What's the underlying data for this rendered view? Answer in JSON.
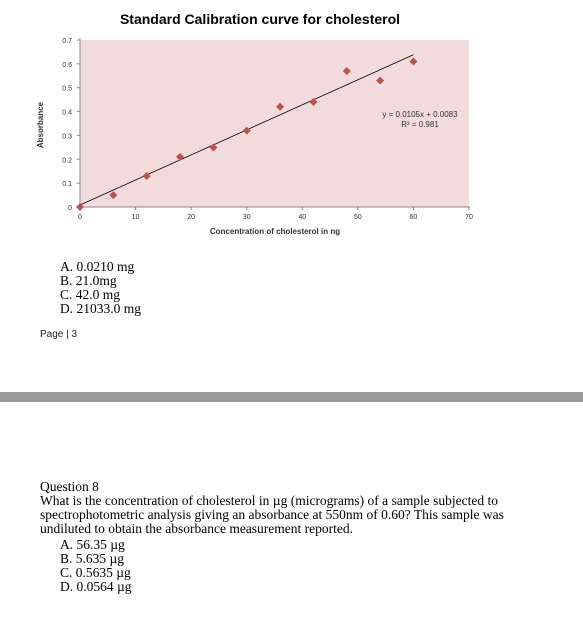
{
  "chart_data": {
    "type": "scatter",
    "title": "Standard Calibration curve for cholesterol",
    "xlabel": "Concentration of cholesterol in ng",
    "ylabel": "Absorbance",
    "xlim": [
      0,
      70
    ],
    "ylim": [
      0,
      0.7
    ],
    "xticks": [
      0,
      10,
      20,
      30,
      40,
      50,
      60,
      70
    ],
    "yticks": [
      0,
      0.1,
      0.2,
      0.3,
      0.4,
      0.5,
      0.6,
      0.7
    ],
    "grid": false,
    "points": [
      {
        "x": 0,
        "y": 0
      },
      {
        "x": 6,
        "y": 0.05
      },
      {
        "x": 12,
        "y": 0.13
      },
      {
        "x": 18,
        "y": 0.21
      },
      {
        "x": 24,
        "y": 0.25
      },
      {
        "x": 30,
        "y": 0.32
      },
      {
        "x": 36,
        "y": 0.42
      },
      {
        "x": 42,
        "y": 0.44
      },
      {
        "x": 48,
        "y": 0.57
      },
      {
        "x": 54,
        "y": 0.53
      },
      {
        "x": 60,
        "y": 0.61
      }
    ],
    "trendline": {
      "slope": 0.0105,
      "intercept": 0.0083,
      "x_range": [
        0,
        60
      ]
    },
    "equation_label": "y = 0.0105x + 0.0083",
    "r2_label": "R² = 0.981",
    "colors": {
      "marker": "#c0504d",
      "plot_background": "#f2dcdb",
      "trendline": "#000000"
    }
  },
  "question7": {
    "options": [
      "A.  0.0210 mg",
      "B.  21.0mg",
      "C.  42.0 mg",
      "D.  21033.0 mg"
    ]
  },
  "footer": "Page | 3",
  "question8": {
    "title": "Question 8",
    "text": "What is the concentration of cholesterol in µg (micrograms) of a sample subjected to spectrophotometric analysis giving an absorbance at 550nm of 0.60? This sample was undiluted to obtain the absorbance measurement reported.",
    "options": [
      "A.  56.35 µg",
      "B.  5.635 µg",
      "C.  0.5635 µg",
      "D.  0.0564 µg"
    ]
  }
}
